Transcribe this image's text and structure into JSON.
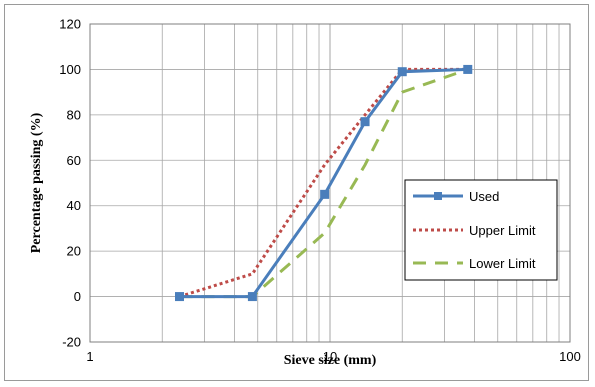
{
  "chart_data": {
    "type": "line",
    "xlabel": "Sieve size (mm)",
    "ylabel": "Percentage passing (%)",
    "xscale": "log",
    "xlim": [
      1,
      100
    ],
    "ylim": [
      -20,
      120
    ],
    "x_ticks": [
      1,
      10,
      100
    ],
    "x_tick_labels": [
      "1",
      "10",
      "100"
    ],
    "y_ticks": [
      -20,
      0,
      20,
      40,
      60,
      80,
      100,
      120
    ],
    "y_tick_labels": [
      "-20",
      "0",
      "20",
      "40",
      "60",
      "80",
      "100",
      "120"
    ],
    "grid": true,
    "legend_position": "right",
    "series": [
      {
        "name": "Used",
        "color": "#4a7ebb",
        "style": "solid",
        "marker": "square",
        "points": [
          [
            2.36,
            0
          ],
          [
            4.75,
            0
          ],
          [
            9.5,
            45
          ],
          [
            14,
            77
          ],
          [
            20,
            99
          ],
          [
            37.5,
            100
          ]
        ]
      },
      {
        "name": "Upper Limit",
        "color": "#be4b48",
        "style": "dotted",
        "marker": "none",
        "points": [
          [
            2.36,
            0
          ],
          [
            4.75,
            10
          ],
          [
            9.5,
            58
          ],
          [
            14,
            80
          ],
          [
            20,
            100
          ],
          [
            37.5,
            100
          ]
        ]
      },
      {
        "name": "Lower Limit",
        "color": "#98b954",
        "style": "dashed",
        "marker": "none",
        "points": [
          [
            2.36,
            0
          ],
          [
            4.75,
            0
          ],
          [
            9.5,
            28
          ],
          [
            14,
            58
          ],
          [
            20,
            90
          ],
          [
            37.5,
            100
          ]
        ]
      }
    ]
  }
}
